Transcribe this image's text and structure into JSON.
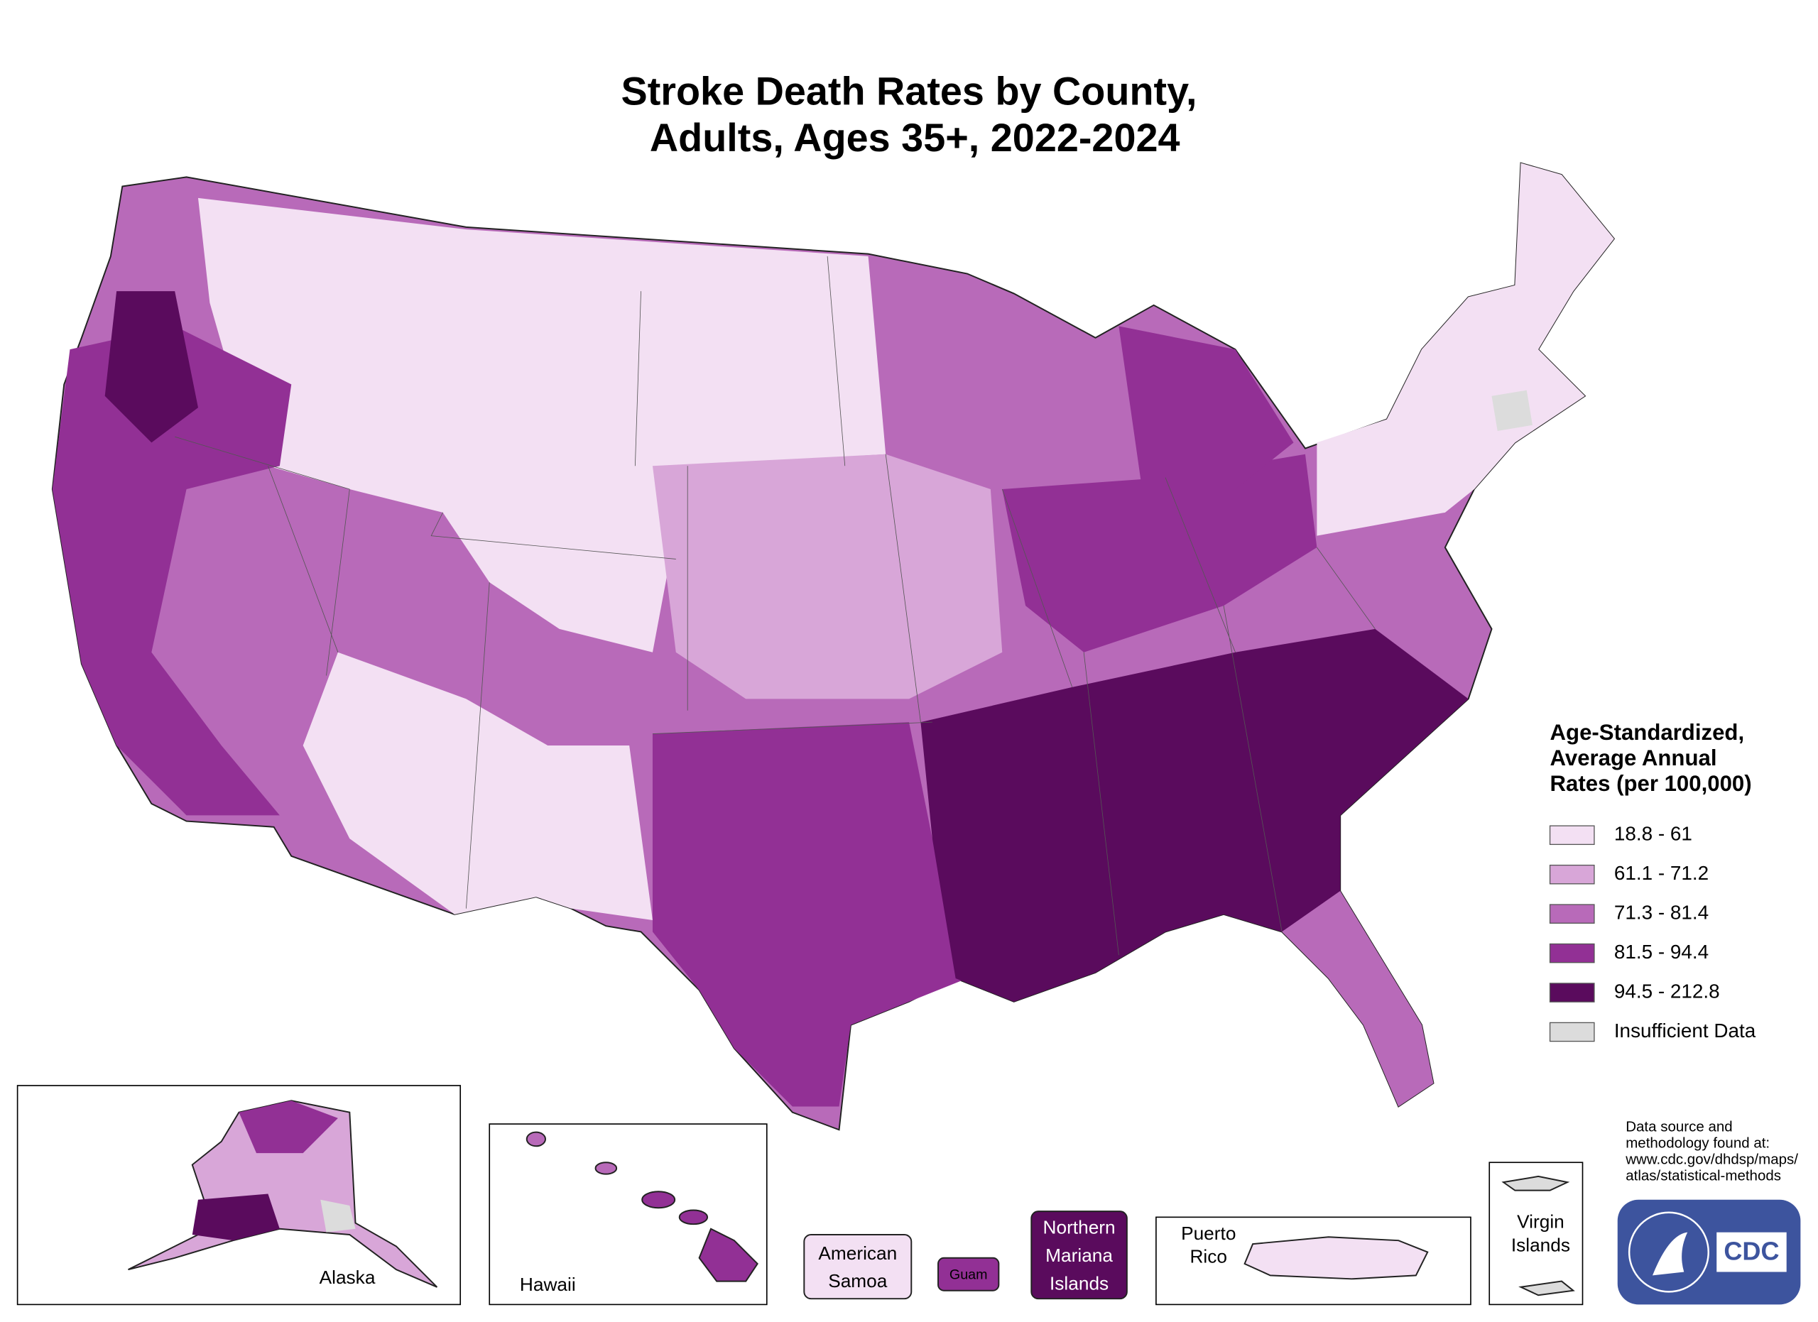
{
  "title": [
    "Stroke Death Rates by County,",
    "Adults, Ages 35+, 2022-2024"
  ],
  "legend": {
    "title": [
      "Age-Standardized,",
      "Average Annual",
      "Rates (per 100,000)"
    ],
    "items": [
      {
        "label": "18.8 - 61",
        "color": "#f3e0f3"
      },
      {
        "label": "61.1 - 71.2",
        "color": "#d8a6d8"
      },
      {
        "label": "71.3 - 81.4",
        "color": "#b86ab9"
      },
      {
        "label": "81.5 - 94.4",
        "color": "#923095"
      },
      {
        "label": "94.5 - 212.8",
        "color": "#5a0b5d"
      },
      {
        "label": "Insufficient Data",
        "color": "#dcdcdc"
      }
    ]
  },
  "insets": {
    "alaska": "Alaska",
    "hawaii": "Hawaii",
    "american_samoa": [
      "American",
      "Samoa"
    ],
    "guam": "Guam",
    "northern_mariana_islands": [
      "Northern",
      "Mariana",
      "Islands"
    ],
    "puerto_rico": [
      "Puerto",
      "Rico"
    ],
    "virgin_islands": [
      "Virgin",
      "Islands"
    ]
  },
  "source": [
    "Data source and",
    "methodology found at:",
    "www.cdc.gov/dhdsp/maps/",
    "atlas/statistical-methods"
  ],
  "logo": "CDC"
}
